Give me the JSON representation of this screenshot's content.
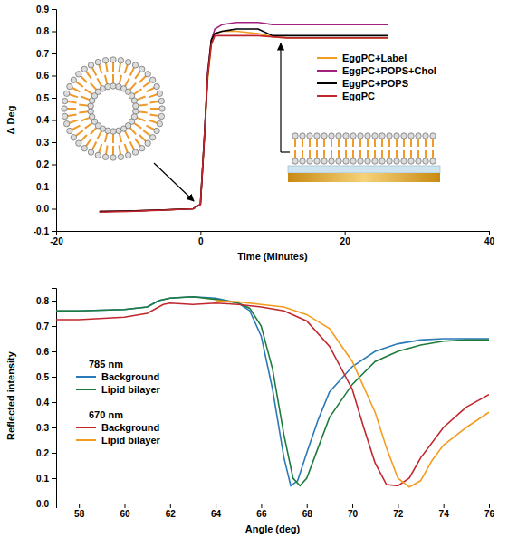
{
  "chart_data": [
    {
      "type": "line",
      "x_label": "Time (Minutes)",
      "y_label": "Δ Deg",
      "xlim": [
        -20,
        40
      ],
      "xticks": [
        -20,
        0,
        20,
        40
      ],
      "ylim": [
        -0.1,
        0.9
      ],
      "yticks": [
        -0.1,
        {
          "value": 0,
          "label": "0.0"
        },
        0.1,
        0.2,
        0.3,
        0.4,
        0.5,
        0.6,
        0.7,
        0.8,
        0.9
      ],
      "legend": "upper right",
      "x": [
        -14,
        -10,
        -5,
        -1,
        0,
        0.5,
        1,
        1.5,
        2,
        3,
        5,
        8,
        10,
        12,
        15,
        20,
        26
      ],
      "series": [
        {
          "name": "EggPC+Label",
          "color": "#f39c1f",
          "values": [
            -0.012,
            -0.01,
            -0.005,
            0,
            0.02,
            0.28,
            0.58,
            0.74,
            0.79,
            0.8,
            0.8,
            0.79,
            0.775,
            0.77,
            0.77,
            0.77,
            0.77
          ]
        },
        {
          "name": "EggPC+POPS+Chol",
          "color": "#a0207e",
          "values": [
            -0.012,
            -0.01,
            -0.005,
            0,
            0.02,
            0.3,
            0.62,
            0.76,
            0.81,
            0.83,
            0.84,
            0.84,
            0.83,
            0.83,
            0.83,
            0.83,
            0.83
          ]
        },
        {
          "name": "EggPC+POPS",
          "color": "#000000",
          "values": [
            -0.012,
            -0.01,
            -0.005,
            0,
            0.02,
            0.3,
            0.6,
            0.76,
            0.79,
            0.8,
            0.81,
            0.81,
            0.78,
            0.78,
            0.78,
            0.78,
            0.78
          ]
        },
        {
          "name": "EggPC",
          "color": "#c0272d",
          "values": [
            -0.015,
            -0.012,
            -0.006,
            0,
            0.02,
            0.3,
            0.6,
            0.74,
            0.78,
            0.78,
            0.78,
            0.78,
            0.775,
            0.77,
            0.77,
            0.77,
            0.77
          ]
        }
      ]
    },
    {
      "type": "line",
      "x_label": "Angle (deg)",
      "y_label": "Reflected intensity",
      "xlim": [
        57,
        76
      ],
      "xticks": [
        58,
        60,
        62,
        64,
        66,
        68,
        70,
        72,
        74,
        76
      ],
      "ylim": [
        0,
        0.85
      ],
      "yticks": [
        {
          "value": 0,
          "label": "0.0"
        },
        0.1,
        0.2,
        0.3,
        0.4,
        0.5,
        0.6,
        0.7,
        0.8
      ],
      "legend": "left",
      "annotations": [
        "785 nm",
        "670 nm"
      ],
      "series": [
        {
          "name": "Background",
          "color": "#2a7ab8",
          "x": [
            57,
            58,
            60,
            61,
            61.5,
            62,
            63,
            64,
            65,
            65.5,
            66,
            66.5,
            67,
            67.3,
            67.6,
            68,
            68.5,
            69,
            70,
            71,
            72,
            73,
            74,
            76
          ],
          "values": [
            0.76,
            0.76,
            0.765,
            0.775,
            0.8,
            0.81,
            0.815,
            0.81,
            0.79,
            0.76,
            0.66,
            0.45,
            0.18,
            0.07,
            0.09,
            0.2,
            0.33,
            0.44,
            0.54,
            0.6,
            0.63,
            0.645,
            0.65,
            0.65
          ]
        },
        {
          "name": "Lipid bilayer",
          "color": "#1e7b3c",
          "x": [
            57,
            58,
            60,
            61,
            61.5,
            62,
            63,
            64,
            65,
            65.5,
            66,
            66.5,
            67,
            67.4,
            67.7,
            68,
            68.5,
            69,
            70,
            71,
            72,
            73,
            74,
            75,
            76
          ],
          "values": [
            0.76,
            0.76,
            0.765,
            0.775,
            0.8,
            0.81,
            0.815,
            0.805,
            0.79,
            0.77,
            0.7,
            0.53,
            0.27,
            0.1,
            0.07,
            0.1,
            0.22,
            0.34,
            0.47,
            0.56,
            0.6,
            0.625,
            0.64,
            0.645,
            0.645
          ]
        },
        {
          "name": "Background",
          "color": "#c0272d",
          "x": [
            57,
            58,
            60,
            61,
            61.7,
            62,
            63,
            64,
            65,
            66,
            67,
            68,
            69,
            70,
            70.5,
            71,
            71.5,
            72,
            72.5,
            73,
            74,
            75,
            76
          ],
          "values": [
            0.725,
            0.725,
            0.735,
            0.75,
            0.785,
            0.79,
            0.785,
            0.79,
            0.785,
            0.775,
            0.76,
            0.72,
            0.62,
            0.45,
            0.3,
            0.16,
            0.075,
            0.07,
            0.1,
            0.18,
            0.3,
            0.38,
            0.43
          ]
        },
        {
          "name": "Lipid bilayer",
          "color": "#f39c1f",
          "x": [
            64,
            65,
            66,
            67,
            68,
            69,
            70,
            71,
            71.5,
            72,
            72.5,
            73,
            73.5,
            74,
            75,
            76
          ],
          "values": [
            0.8,
            0.795,
            0.785,
            0.775,
            0.745,
            0.69,
            0.56,
            0.36,
            0.22,
            0.1,
            0.065,
            0.09,
            0.17,
            0.23,
            0.3,
            0.36
          ]
        }
      ]
    }
  ]
}
